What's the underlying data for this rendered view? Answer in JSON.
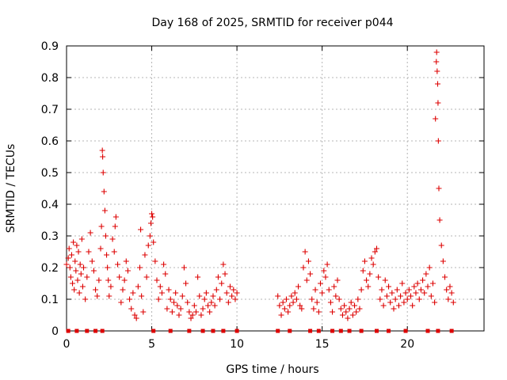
{
  "chart_data": {
    "type": "scatter",
    "title": "Day 168 of 2025, SRMTID for receiver p044",
    "xlabel": "GPS time / hours",
    "ylabel": "SRMTID / TECUs",
    "xlim": [
      0,
      24.5
    ],
    "ylim": [
      0,
      0.9
    ],
    "xticks": [
      0,
      5,
      10,
      15,
      20
    ],
    "xtick_labels": [
      "0",
      "5",
      "10",
      "15",
      "20"
    ],
    "yticks": [
      0,
      0.1,
      0.2,
      0.3,
      0.4,
      0.5,
      0.6,
      0.7,
      0.8,
      0.9
    ],
    "ytick_labels": [
      "0",
      "0.1",
      "0.2",
      "0.3",
      "0.4",
      "0.5",
      "0.6",
      "0.7",
      "0.8",
      "0.9"
    ],
    "grid": true,
    "marker": "plus",
    "color": "#dd0000",
    "series": [
      {
        "name": "SRMTID",
        "points": [
          [
            0.0,
            0.21
          ],
          [
            0.1,
            0.23
          ],
          [
            0.15,
            0.26
          ],
          [
            0.2,
            0.2
          ],
          [
            0.25,
            0.17
          ],
          [
            0.3,
            0.24
          ],
          [
            0.35,
            0.15
          ],
          [
            0.4,
            0.28
          ],
          [
            0.45,
            0.13
          ],
          [
            0.5,
            0.22
          ],
          [
            0.55,
            0.19
          ],
          [
            0.6,
            0.27
          ],
          [
            0.65,
            0.16
          ],
          [
            0.7,
            0.25
          ],
          [
            0.75,
            0.12
          ],
          [
            0.8,
            0.21
          ],
          [
            0.85,
            0.18
          ],
          [
            0.9,
            0.29
          ],
          [
            0.95,
            0.14
          ],
          [
            1.0,
            0.2
          ],
          [
            1.1,
            0.1
          ],
          [
            1.2,
            0.17
          ],
          [
            1.3,
            0.25
          ],
          [
            1.4,
            0.31
          ],
          [
            1.5,
            0.22
          ],
          [
            1.6,
            0.19
          ],
          [
            1.7,
            0.13
          ],
          [
            1.8,
            0.11
          ],
          [
            1.9,
            0.16
          ],
          [
            2.0,
            0.26
          ],
          [
            2.05,
            0.33
          ],
          [
            2.1,
            0.57
          ],
          [
            2.12,
            0.55
          ],
          [
            2.15,
            0.5
          ],
          [
            2.2,
            0.44
          ],
          [
            2.25,
            0.38
          ],
          [
            2.3,
            0.3
          ],
          [
            2.35,
            0.24
          ],
          [
            2.4,
            0.2
          ],
          [
            2.45,
            0.16
          ],
          [
            2.5,
            0.11
          ],
          [
            2.6,
            0.14
          ],
          [
            2.7,
            0.29
          ],
          [
            2.8,
            0.25
          ],
          [
            2.85,
            0.33
          ],
          [
            2.9,
            0.36
          ],
          [
            3.0,
            0.21
          ],
          [
            3.1,
            0.17
          ],
          [
            3.2,
            0.09
          ],
          [
            3.3,
            0.13
          ],
          [
            3.4,
            0.16
          ],
          [
            3.5,
            0.22
          ],
          [
            3.6,
            0.19
          ],
          [
            3.7,
            0.1
          ],
          [
            3.8,
            0.07
          ],
          [
            3.9,
            0.12
          ],
          [
            4.0,
            0.05
          ],
          [
            4.1,
            0.04
          ],
          [
            4.2,
            0.14
          ],
          [
            4.3,
            0.2
          ],
          [
            4.35,
            0.32
          ],
          [
            4.4,
            0.11
          ],
          [
            4.5,
            0.06
          ],
          [
            4.6,
            0.24
          ],
          [
            4.7,
            0.17
          ],
          [
            4.8,
            0.27
          ],
          [
            4.9,
            0.3
          ],
          [
            4.95,
            0.34
          ],
          [
            5.0,
            0.37
          ],
          [
            5.05,
            0.36
          ],
          [
            5.1,
            0.28
          ],
          [
            5.2,
            0.22
          ],
          [
            5.3,
            0.16
          ],
          [
            5.4,
            0.1
          ],
          [
            5.5,
            0.14
          ],
          [
            5.6,
            0.12
          ],
          [
            5.7,
            0.21
          ],
          [
            5.8,
            0.18
          ],
          [
            5.9,
            0.07
          ],
          [
            6.0,
            0.13
          ],
          [
            6.1,
            0.1
          ],
          [
            6.2,
            0.06
          ],
          [
            6.3,
            0.09
          ],
          [
            6.4,
            0.12
          ],
          [
            6.5,
            0.08
          ],
          [
            6.6,
            0.05
          ],
          [
            6.7,
            0.07
          ],
          [
            6.8,
            0.11
          ],
          [
            6.9,
            0.2
          ],
          [
            7.0,
            0.15
          ],
          [
            7.1,
            0.09
          ],
          [
            7.2,
            0.06
          ],
          [
            7.3,
            0.04
          ],
          [
            7.4,
            0.05
          ],
          [
            7.5,
            0.08
          ],
          [
            7.6,
            0.06
          ],
          [
            7.7,
            0.17
          ],
          [
            7.8,
            0.11
          ],
          [
            7.9,
            0.05
          ],
          [
            8.0,
            0.07
          ],
          [
            8.1,
            0.1
          ],
          [
            8.2,
            0.12
          ],
          [
            8.3,
            0.08
          ],
          [
            8.4,
            0.06
          ],
          [
            8.5,
            0.09
          ],
          [
            8.6,
            0.11
          ],
          [
            8.7,
            0.08
          ],
          [
            8.8,
            0.13
          ],
          [
            8.9,
            0.17
          ],
          [
            9.0,
            0.1
          ],
          [
            9.1,
            0.15
          ],
          [
            9.2,
            0.21
          ],
          [
            9.3,
            0.18
          ],
          [
            9.4,
            0.12
          ],
          [
            9.5,
            0.09
          ],
          [
            9.6,
            0.14
          ],
          [
            9.7,
            0.11
          ],
          [
            9.8,
            0.13
          ],
          [
            9.9,
            0.1
          ],
          [
            10.0,
            0.12
          ],
          [
            12.4,
            0.11
          ],
          [
            12.5,
            0.08
          ],
          [
            12.6,
            0.05
          ],
          [
            12.7,
            0.09
          ],
          [
            12.8,
            0.07
          ],
          [
            12.9,
            0.1
          ],
          [
            13.0,
            0.06
          ],
          [
            13.1,
            0.08
          ],
          [
            13.2,
            0.11
          ],
          [
            13.3,
            0.09
          ],
          [
            13.4,
            0.12
          ],
          [
            13.5,
            0.1
          ],
          [
            13.6,
            0.14
          ],
          [
            13.7,
            0.08
          ],
          [
            13.8,
            0.07
          ],
          [
            13.9,
            0.2
          ],
          [
            14.0,
            0.25
          ],
          [
            14.1,
            0.16
          ],
          [
            14.2,
            0.22
          ],
          [
            14.3,
            0.18
          ],
          [
            14.4,
            0.1
          ],
          [
            14.5,
            0.07
          ],
          [
            14.6,
            0.13
          ],
          [
            14.7,
            0.09
          ],
          [
            14.8,
            0.06
          ],
          [
            14.9,
            0.15
          ],
          [
            15.0,
            0.12
          ],
          [
            15.1,
            0.19
          ],
          [
            15.2,
            0.17
          ],
          [
            15.3,
            0.21
          ],
          [
            15.4,
            0.13
          ],
          [
            15.5,
            0.09
          ],
          [
            15.6,
            0.06
          ],
          [
            15.7,
            0.14
          ],
          [
            15.8,
            0.11
          ],
          [
            15.9,
            0.16
          ],
          [
            16.0,
            0.1
          ],
          [
            16.1,
            0.07
          ],
          [
            16.2,
            0.05
          ],
          [
            16.3,
            0.08
          ],
          [
            16.4,
            0.06
          ],
          [
            16.5,
            0.04
          ],
          [
            16.6,
            0.07
          ],
          [
            16.7,
            0.09
          ],
          [
            16.8,
            0.05
          ],
          [
            16.9,
            0.08
          ],
          [
            17.0,
            0.06
          ],
          [
            17.1,
            0.1
          ],
          [
            17.2,
            0.07
          ],
          [
            17.3,
            0.13
          ],
          [
            17.4,
            0.19
          ],
          [
            17.5,
            0.22
          ],
          [
            17.6,
            0.16
          ],
          [
            17.7,
            0.14
          ],
          [
            17.8,
            0.18
          ],
          [
            17.9,
            0.23
          ],
          [
            18.0,
            0.21
          ],
          [
            18.1,
            0.25
          ],
          [
            18.2,
            0.26
          ],
          [
            18.3,
            0.17
          ],
          [
            18.4,
            0.1
          ],
          [
            18.5,
            0.13
          ],
          [
            18.6,
            0.08
          ],
          [
            18.7,
            0.16
          ],
          [
            18.8,
            0.11
          ],
          [
            18.9,
            0.14
          ],
          [
            19.0,
            0.09
          ],
          [
            19.1,
            0.12
          ],
          [
            19.2,
            0.07
          ],
          [
            19.3,
            0.1
          ],
          [
            19.4,
            0.13
          ],
          [
            19.5,
            0.08
          ],
          [
            19.6,
            0.11
          ],
          [
            19.7,
            0.15
          ],
          [
            19.8,
            0.09
          ],
          [
            19.9,
            0.12
          ],
          [
            20.0,
            0.1
          ],
          [
            20.1,
            0.13
          ],
          [
            20.2,
            0.11
          ],
          [
            20.3,
            0.08
          ],
          [
            20.4,
            0.14
          ],
          [
            20.5,
            0.12
          ],
          [
            20.6,
            0.15
          ],
          [
            20.7,
            0.1
          ],
          [
            20.8,
            0.13
          ],
          [
            20.9,
            0.16
          ],
          [
            21.0,
            0.12
          ],
          [
            21.1,
            0.18
          ],
          [
            21.2,
            0.14
          ],
          [
            21.3,
            0.2
          ],
          [
            21.4,
            0.11
          ],
          [
            21.5,
            0.15
          ],
          [
            21.6,
            0.09
          ],
          [
            21.65,
            0.67
          ],
          [
            21.7,
            0.85
          ],
          [
            21.72,
            0.88
          ],
          [
            21.75,
            0.82
          ],
          [
            21.78,
            0.78
          ],
          [
            21.8,
            0.72
          ],
          [
            21.82,
            0.6
          ],
          [
            21.85,
            0.45
          ],
          [
            21.9,
            0.35
          ],
          [
            22.0,
            0.27
          ],
          [
            22.1,
            0.22
          ],
          [
            22.2,
            0.17
          ],
          [
            22.3,
            0.13
          ],
          [
            22.4,
            0.1
          ],
          [
            22.5,
            0.14
          ],
          [
            22.6,
            0.12
          ],
          [
            22.7,
            0.09
          ]
        ]
      }
    ],
    "zero_markers_x": [
      0.1,
      0.6,
      1.2,
      1.7,
      2.1,
      5.1,
      6.1,
      7.2,
      8.0,
      8.6,
      9.2,
      10.0,
      12.4,
      13.1,
      14.3,
      14.8,
      15.6,
      16.1,
      16.6,
      17.3,
      18.2,
      18.9,
      19.9,
      21.2,
      21.8,
      22.6
    ]
  }
}
